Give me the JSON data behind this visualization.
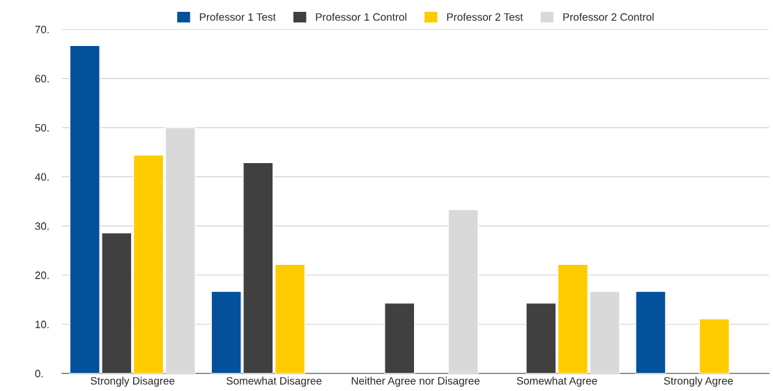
{
  "chart_data": {
    "type": "bar",
    "categories": [
      "Strongly Disagree",
      "Somewhat Disagree",
      "Neither Agree nor Disagree",
      "Somewhat Agree",
      "Strongly Agree"
    ],
    "series": [
      {
        "name": "Professor 1 Test",
        "color": "#02519a",
        "values": [
          66.7,
          16.7,
          null,
          null,
          16.7
        ]
      },
      {
        "name": "Professor 1 Control",
        "color": "#404041",
        "values": [
          28.6,
          42.9,
          14.3,
          14.3,
          null
        ]
      },
      {
        "name": "Professor 2 Test",
        "color": "#fecb00",
        "values": [
          44.4,
          22.2,
          null,
          22.2,
          11.1
        ]
      },
      {
        "name": "Professor 2 Control",
        "color": "#d9d9d9",
        "values": [
          50,
          null,
          33.3,
          16.7,
          null
        ]
      }
    ],
    "ylim": [
      0,
      70
    ],
    "yticks": [
      {
        "value": 0,
        "label": "0."
      },
      {
        "value": 10,
        "label": "10."
      },
      {
        "value": 20,
        "label": "20."
      },
      {
        "value": 30,
        "label": "30."
      },
      {
        "value": 40,
        "label": "40."
      },
      {
        "value": 50,
        "label": "50."
      },
      {
        "value": 60,
        "label": "60."
      },
      {
        "value": 70,
        "label": "70."
      }
    ],
    "grid": "y",
    "legend": "top"
  }
}
